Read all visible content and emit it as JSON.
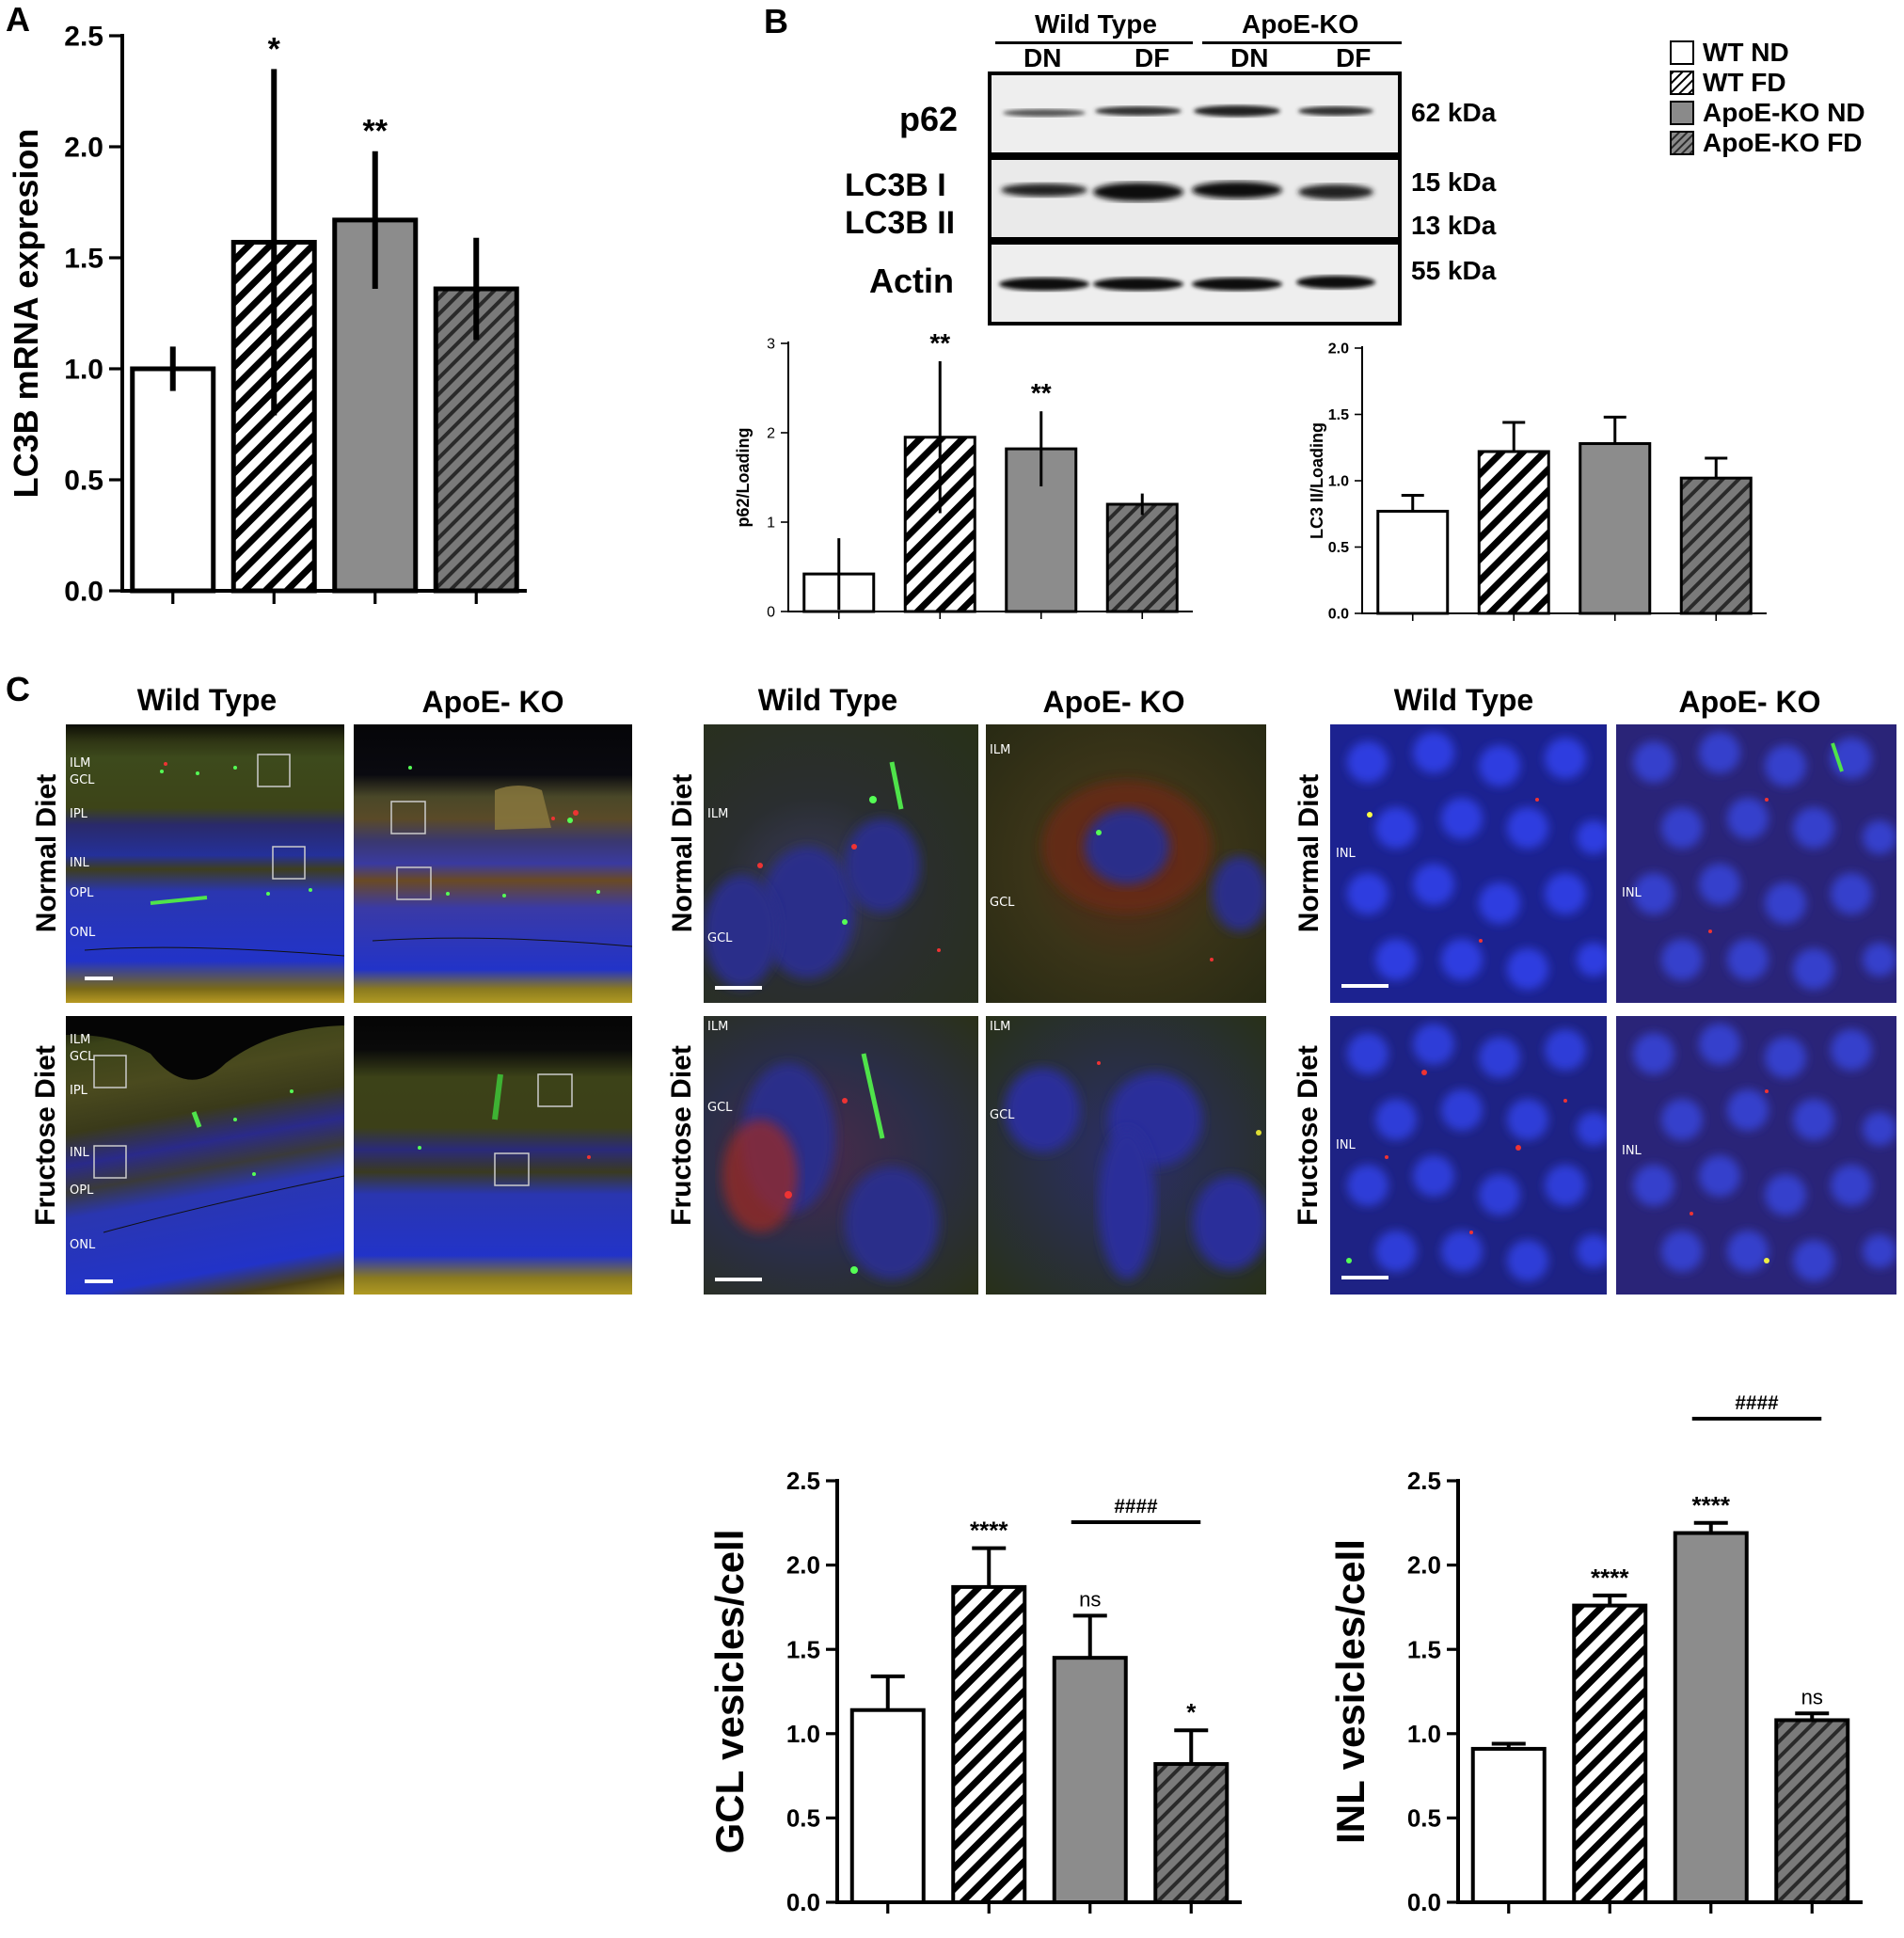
{
  "panels": {
    "A": {
      "label": "A"
    },
    "B": {
      "label": "B"
    },
    "C": {
      "label": "C"
    }
  },
  "legend": [
    {
      "name": "WT ND",
      "pattern": "white"
    },
    {
      "name": "WT FD",
      "pattern": "hatch-white"
    },
    {
      "name": "ApoE-KO ND",
      "pattern": "gray"
    },
    {
      "name": "ApoE-KO FD",
      "pattern": "hatch-gray"
    }
  ],
  "blot": {
    "group_labels": [
      "Wild Type",
      "ApoE-KO"
    ],
    "lane_labels": [
      "DN",
      "DF",
      "DN",
      "DF"
    ],
    "row_labels": [
      "p62",
      "LC3B I",
      "LC3B II",
      "Actin"
    ],
    "kda_labels": [
      "62 kDa",
      "15 kDa",
      "13 kDa",
      "55 kDa"
    ]
  },
  "micrographs": {
    "col_labels": [
      "Wild Type",
      "ApoE- KO",
      "Wild Type",
      "ApoE- KO",
      "Wild Type",
      "ApoE- KO"
    ],
    "row_labels": [
      "Normal Diet",
      "Fructose Diet",
      "Normal Diet",
      "Fructose Diet",
      "Normal Diet",
      "Fructose Diet"
    ],
    "layers_top": [
      "ILM",
      "GCL",
      "IPL",
      "INL",
      "OPL",
      "ONL"
    ],
    "layers_bottom": [
      "ILM",
      "GCL",
      "IPL",
      "INL",
      "OPL",
      "ONL"
    ],
    "mid_labels": {
      "tl_ilm": "ILM",
      "tl_gcl": "GCL",
      "tr_ilm": "ILM",
      "tr_gcl": "GCL",
      "bl_ilm": "ILM",
      "bl_gcl": "GCL",
      "br_ilm": "ILM",
      "br_gcl": "GCL"
    },
    "right_labels": {
      "tl": "INL",
      "tr": "INL",
      "bl": "INL",
      "br": "INL"
    },
    "colors": {
      "blue": "#1a2bd6",
      "green": "#3fd43a",
      "red": "#e22a1e",
      "olive": "#5a5a20"
    }
  },
  "chart_data": [
    {
      "id": "A",
      "type": "bar",
      "categories": [
        "WT ND",
        "WT FD",
        "ApoE-KO ND",
        "ApoE-KO FD"
      ],
      "values": [
        1.0,
        1.57,
        1.67,
        1.36
      ],
      "errors": [
        0.1,
        0.78,
        0.31,
        0.23
      ],
      "significance": [
        "",
        "*",
        "**",
        ""
      ],
      "ylabel": "LC3B mRNA expresion",
      "ylim": [
        0,
        2.5
      ],
      "yticks": [
        "0.0",
        "0.5",
        "1.0",
        "1.5",
        "2.0",
        "2.5"
      ]
    },
    {
      "id": "B-p62",
      "type": "bar",
      "categories": [
        "WT ND",
        "WT FD",
        "ApoE-KO ND",
        "ApoE-KO FD"
      ],
      "values": [
        0.42,
        1.95,
        1.82,
        1.2
      ],
      "errors": [
        0.4,
        0.85,
        0.42,
        0.12
      ],
      "significance": [
        "",
        "**",
        "**",
        ""
      ],
      "ylabel": "p62/Loading",
      "ylim": [
        0,
        3
      ],
      "yticks": [
        "0",
        "1",
        "2",
        "3"
      ]
    },
    {
      "id": "B-LC3",
      "type": "bar",
      "categories": [
        "WT ND",
        "WT FD",
        "ApoE-KO ND",
        "ApoE-KO FD"
      ],
      "values": [
        0.77,
        1.22,
        1.28,
        1.02
      ],
      "errors": [
        0.12,
        0.22,
        0.2,
        0.15
      ],
      "significance": [
        "",
        "",
        "",
        ""
      ],
      "ylabel": "LC3 II/Loading",
      "ylim": [
        0,
        2.0
      ],
      "yticks": [
        "0.0",
        "0.5",
        "1.0",
        "1.5",
        "2.0"
      ]
    },
    {
      "id": "C-GCL",
      "type": "bar",
      "categories": [
        "WT ND",
        "WT FD",
        "ApoE-KO ND",
        "ApoE-KO FD"
      ],
      "values": [
        1.14,
        1.87,
        1.45,
        0.82
      ],
      "errors": [
        0.2,
        0.23,
        0.25,
        0.2
      ],
      "significance": [
        "",
        "****",
        "ns",
        "*"
      ],
      "bracket": {
        "from": 2,
        "to": 3,
        "label": "####"
      },
      "ylabel": "GCL vesicles/cell",
      "ylim": [
        0,
        2.5
      ],
      "yticks": [
        "0.0",
        "0.5",
        "1.0",
        "1.5",
        "2.0",
        "2.5"
      ]
    },
    {
      "id": "C-INL",
      "type": "bar",
      "categories": [
        "WT ND",
        "WT FD",
        "ApoE-KO ND",
        "ApoE-KO FD"
      ],
      "values": [
        0.91,
        1.76,
        2.19,
        1.08
      ],
      "errors": [
        0.03,
        0.06,
        0.06,
        0.04
      ],
      "significance": [
        "",
        "****",
        "****",
        "ns"
      ],
      "bracket": {
        "from": 2,
        "to": 3,
        "label": "####"
      },
      "ylabel": "INL vesicles/cell",
      "ylim": [
        0,
        2.5
      ],
      "yticks": [
        "0.0",
        "0.5",
        "1.0",
        "1.5",
        "2.0",
        "2.5"
      ]
    }
  ]
}
